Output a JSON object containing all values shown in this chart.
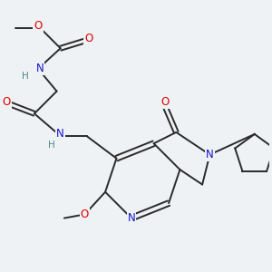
{
  "background_color": "#eff2f4",
  "bond_color": "#2a2a2a",
  "atom_colors": {
    "O": "#e00000",
    "N": "#1414cc",
    "H": "#4a8888",
    "C": "#2a2a2a"
  },
  "figsize": [
    3.0,
    3.0
  ],
  "dpi": 100,
  "bond_lw": 1.4,
  "font_size": 8.5
}
